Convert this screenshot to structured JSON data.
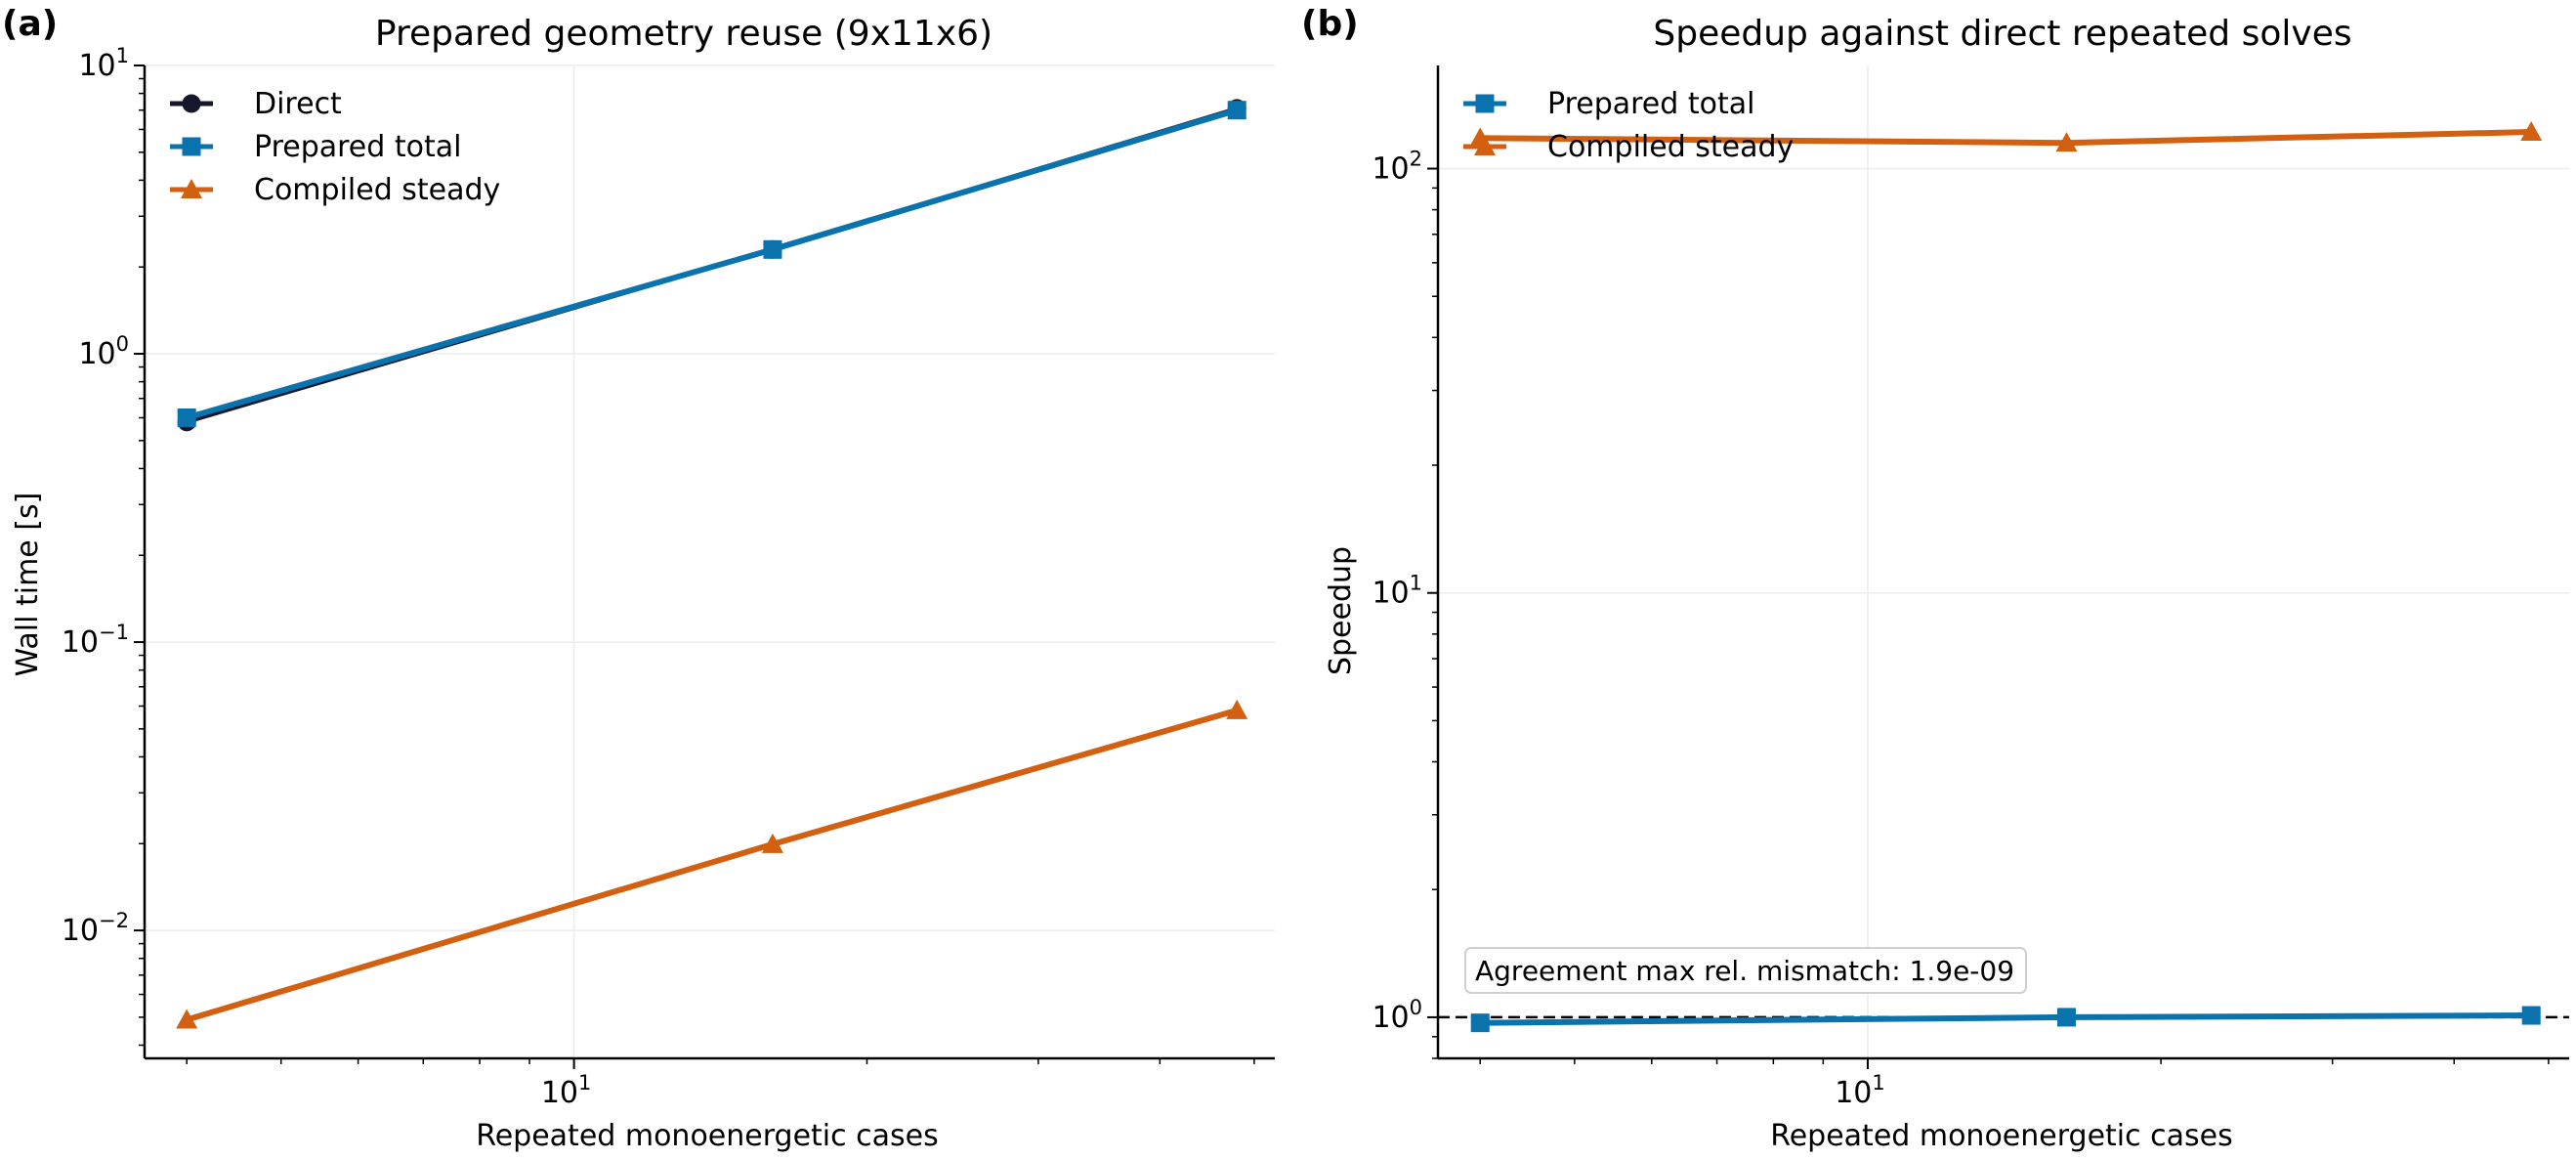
{
  "figure": {
    "panel_labels": [
      "(a)",
      "(b)"
    ]
  },
  "colors": {
    "direct": "#15172a",
    "prepared": "#0a72ad",
    "compiled": "#d35f10",
    "grid": "#ececec",
    "axis": "#000000"
  },
  "chart_data": [
    {
      "type": "line",
      "panel": "(a)",
      "title": "Prepared geometry reuse (9x11x6)",
      "xlabel": "Repeated monoenergetic cases",
      "ylabel": "Wall time [s]",
      "xscale": "log",
      "yscale": "log",
      "xlim": [
        3.62,
        52.5
      ],
      "ylim": [
        0.0036,
        10
      ],
      "xticks": [
        {
          "base": "10",
          "exp": "1",
          "value": 10
        }
      ],
      "yticks": [
        {
          "base": "10",
          "exp": "−2",
          "value": 0.01
        },
        {
          "base": "10",
          "exp": "−1",
          "value": 0.1
        },
        {
          "base": "10",
          "exp": "0",
          "value": 1
        },
        {
          "base": "10",
          "exp": "1",
          "value": 10
        }
      ],
      "grid": true,
      "legend_position": "top-left",
      "series": [
        {
          "name": "Direct",
          "color_key": "direct",
          "marker": "circle",
          "x": [
            4,
            16,
            48
          ],
          "y": [
            0.58,
            2.3,
            7.1
          ]
        },
        {
          "name": "Prepared total",
          "color_key": "prepared",
          "marker": "square",
          "x": [
            4,
            16,
            48
          ],
          "y": [
            0.6,
            2.3,
            7.0
          ]
        },
        {
          "name": "Compiled steady",
          "color_key": "compiled",
          "marker": "triangle",
          "x": [
            4,
            16,
            48
          ],
          "y": [
            0.0049,
            0.0199,
            0.058
          ]
        }
      ]
    },
    {
      "type": "line",
      "panel": "(b)",
      "title": "Speedup against direct repeated solves",
      "xlabel": "Repeated monoenergetic cases",
      "ylabel": "Speedup",
      "xscale": "log",
      "yscale": "log",
      "xlim": [
        3.62,
        52.5
      ],
      "ylim": [
        0.8,
        175
      ],
      "xticks": [
        {
          "base": "10",
          "exp": "1",
          "value": 10
        }
      ],
      "yticks": [
        {
          "base": "10",
          "exp": "0",
          "value": 1
        },
        {
          "base": "10",
          "exp": "1",
          "value": 10
        },
        {
          "base": "10",
          "exp": "2",
          "value": 100
        }
      ],
      "grid": true,
      "legend_position": "top-left",
      "reference_line": {
        "y": 1,
        "style": "dashed"
      },
      "annotation": "Agreement max rel. mismatch: 1.9e-09",
      "series": [
        {
          "name": "Prepared total",
          "color_key": "prepared",
          "marker": "square",
          "x": [
            4,
            16,
            48
          ],
          "y": [
            0.97,
            1.0,
            1.01
          ]
        },
        {
          "name": "Compiled steady",
          "color_key": "compiled",
          "marker": "triangle",
          "x": [
            4,
            16,
            48
          ],
          "y": [
            118,
            115,
            122
          ]
        }
      ]
    }
  ]
}
